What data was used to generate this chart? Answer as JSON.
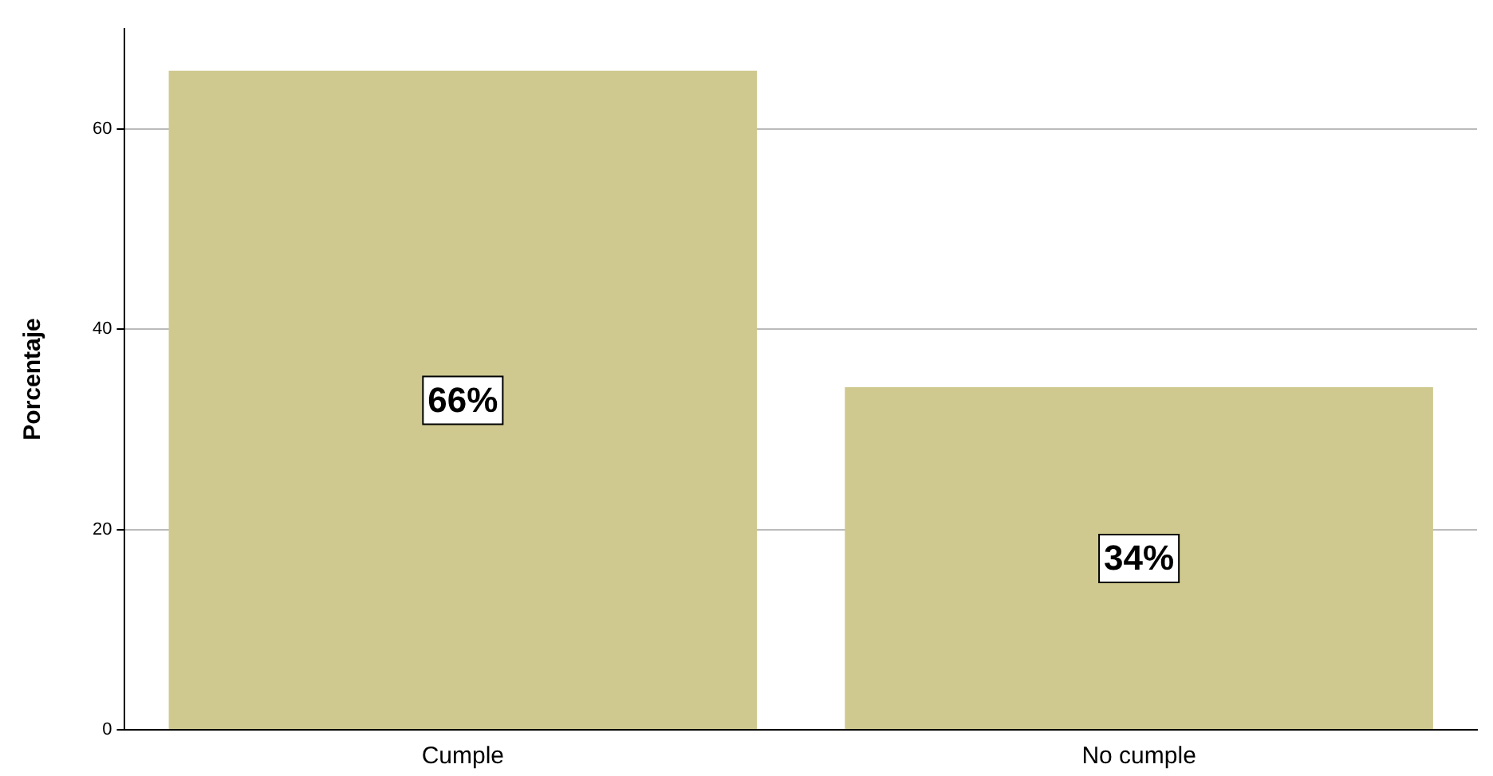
{
  "chart_data": {
    "type": "bar",
    "ylabel": "Porcentaje",
    "categories": [
      "Cumple",
      "No cumple"
    ],
    "values": [
      65.8,
      34.2
    ],
    "value_labels": [
      "66%",
      "34%"
    ],
    "color": "#cfc98f",
    "ylim": [
      0,
      70
    ],
    "yticks": [
      0,
      20,
      40,
      60
    ],
    "grid": "y",
    "legend": false
  }
}
